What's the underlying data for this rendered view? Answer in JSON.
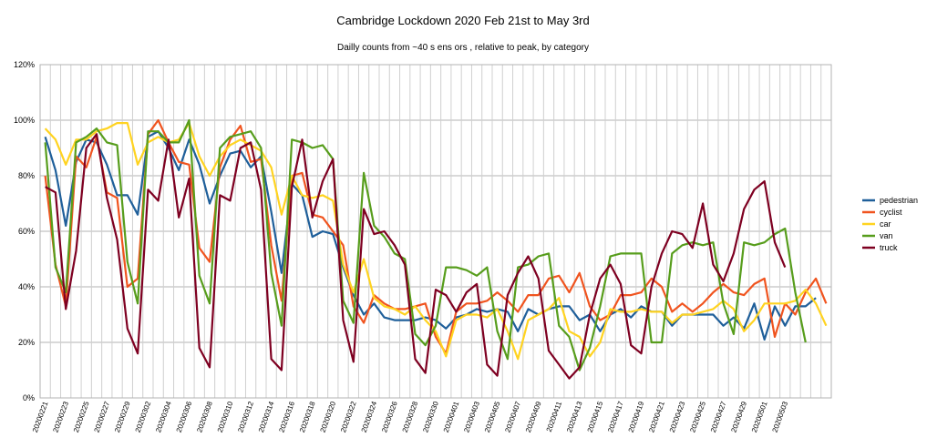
{
  "chart_data": {
    "type": "line",
    "title": "Cambridge Lockdown 2020 Feb 21st to May 3rd",
    "subtitle": "Dailly counts from ~40 s ens ors , relative to peak, by category",
    "xlabel": "",
    "ylabel": "",
    "ylim": [
      0,
      120
    ],
    "yticks": [
      "0%",
      "20%",
      "40%",
      "60%",
      "80%",
      "100%",
      "120%"
    ],
    "grid": true,
    "legend_position": "right",
    "x_tick_labels": [
      "20200221",
      "20200223",
      "20200225",
      "20200227",
      "20200229",
      "20200302",
      "20200304",
      "20200306",
      "20200308",
      "20200310",
      "20200312",
      "20200314",
      "20200316",
      "20200318",
      "20200320",
      "20200322",
      "20200324",
      "20200326",
      "20200328",
      "20200330",
      "20200401",
      "20200403",
      "20200405",
      "20200407",
      "20200409",
      "20200411",
      "20200413",
      "20200415",
      "20200417",
      "20200419",
      "20200421",
      "20200423",
      "20200425",
      "20200427",
      "20200429",
      "20200501",
      "20200503"
    ],
    "series": [
      {
        "name": "pedestrian",
        "color": "#1f5f9a",
        "values": [
          94,
          82,
          62,
          85,
          93,
          92,
          84,
          73,
          73,
          66,
          94,
          96,
          90,
          82,
          93,
          84,
          70,
          80,
          88,
          89,
          83,
          87,
          67,
          45,
          77,
          73,
          58,
          60,
          59,
          47,
          37,
          30,
          34,
          29,
          28,
          28,
          28,
          29,
          28,
          25,
          29,
          30,
          32,
          31,
          32,
          31,
          24,
          32,
          30,
          32,
          33,
          33,
          28,
          30,
          24,
          30,
          32,
          29,
          33,
          31,
          31,
          26,
          30,
          30,
          30,
          30,
          26,
          29,
          25,
          34,
          21,
          33,
          26,
          33,
          33,
          36
        ]
      },
      {
        "name": "cyclist",
        "color": "#f0541f",
        "values": [
          80,
          48,
          33,
          87,
          83,
          94,
          74,
          72,
          40,
          43,
          95,
          100,
          92,
          85,
          84,
          54,
          49,
          83,
          93,
          98,
          85,
          86,
          55,
          35,
          80,
          81,
          66,
          65,
          60,
          55,
          33,
          27,
          37,
          34,
          32,
          32,
          33,
          34,
          22,
          16,
          31,
          34,
          34,
          35,
          38,
          35,
          31,
          37,
          37,
          43,
          44,
          38,
          45,
          33,
          28,
          30,
          37,
          37,
          38,
          43,
          40,
          31,
          34,
          31,
          34,
          38,
          41,
          38,
          37,
          41,
          43,
          22,
          34,
          30,
          38,
          43,
          34
        ]
      },
      {
        "name": "car",
        "color": "#ffd320",
        "values": [
          97,
          93,
          84,
          93,
          93,
          96,
          97,
          99,
          99,
          84,
          92,
          94,
          92,
          93,
          99,
          87,
          80,
          87,
          91,
          93,
          91,
          89,
          83,
          66,
          80,
          73,
          72,
          73,
          71,
          48,
          38,
          50,
          36,
          33,
          32,
          30,
          33,
          28,
          24,
          15,
          28,
          30,
          30,
          29,
          32,
          24,
          14,
          28,
          30,
          32,
          36,
          24,
          22,
          15,
          20,
          32,
          31,
          31,
          32,
          31,
          31,
          27,
          30,
          30,
          31,
          32,
          35,
          32,
          24,
          28,
          34,
          34,
          34,
          35,
          39,
          34,
          26
        ]
      },
      {
        "name": "van",
        "color": "#579d1c",
        "values": [
          92,
          47,
          38,
          92,
          94,
          97,
          92,
          91,
          49,
          34,
          96,
          96,
          92,
          92,
          100,
          44,
          34,
          90,
          94,
          95,
          96,
          90,
          45,
          26,
          93,
          92,
          90,
          91,
          86,
          35,
          27,
          81,
          62,
          58,
          52,
          50,
          23,
          19,
          26,
          47,
          47,
          46,
          44,
          47,
          24,
          14,
          47,
          48,
          51,
          52,
          26,
          22,
          10,
          18,
          33,
          51,
          52,
          52,
          52,
          20,
          20,
          52,
          55,
          56,
          55,
          56,
          34,
          23,
          56,
          55,
          56,
          59,
          61,
          38,
          20
        ]
      },
      {
        "name": "truck",
        "color": "#7e0021",
        "values": [
          76,
          74,
          32,
          53,
          90,
          95,
          72,
          57,
          25,
          16,
          75,
          71,
          93,
          65,
          79,
          18,
          11,
          73,
          71,
          90,
          92,
          75,
          14,
          10,
          76,
          93,
          65,
          78,
          86,
          28,
          13,
          68,
          59,
          60,
          55,
          48,
          14,
          9,
          39,
          37,
          31,
          38,
          41,
          12,
          8,
          37,
          45,
          51,
          43,
          17,
          12,
          7,
          11,
          30,
          43,
          48,
          41,
          19,
          16,
          40,
          52,
          60,
          59,
          54,
          70,
          48,
          42,
          52,
          68,
          75,
          78,
          56,
          47
        ]
      }
    ]
  }
}
